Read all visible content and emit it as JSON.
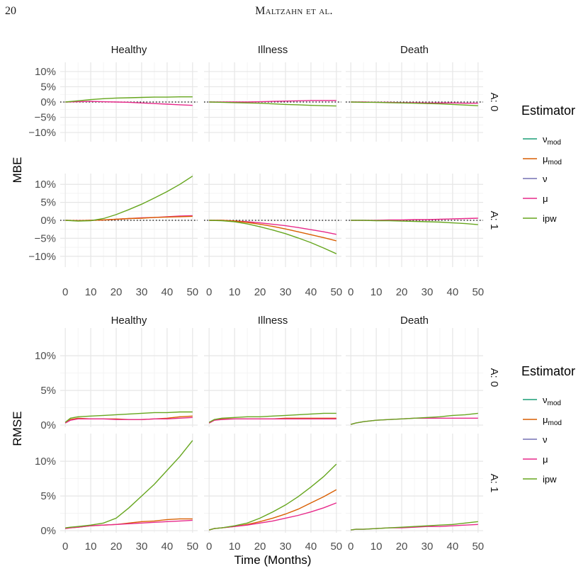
{
  "header": {
    "page_number": "20",
    "running_head": "Maltzahn et al."
  },
  "chart_data": [
    {
      "type": "line",
      "panel": "top",
      "ylabel": "MBE",
      "facet_cols": [
        "Healthy",
        "Illness",
        "Death"
      ],
      "facet_rows": [
        "A: 0",
        "A: 1"
      ],
      "x_ticks": [
        "0",
        "10",
        "20",
        "30",
        "40",
        "50"
      ],
      "y_ticks": [
        "−10%",
        "−5%",
        "0%",
        "5%",
        "10%"
      ],
      "ylim": [
        -0.13,
        0.13
      ],
      "xlim": [
        -2,
        52
      ],
      "reference_line": 0,
      "legend": {
        "title": "Estimator",
        "placement": "right",
        "entries": [
          {
            "base": "ν",
            "sub": "mod",
            "color": "#1b9e77"
          },
          {
            "base": "μ",
            "sub": "mod",
            "color": "#d95f02"
          },
          {
            "base": "ν",
            "sub": "",
            "color": "#7570b3"
          },
          {
            "base": "μ",
            "sub": "",
            "color": "#e7298a"
          },
          {
            "base": "ipw",
            "sub": "",
            "color": "#66a61e"
          }
        ]
      },
      "x": [
        0,
        5,
        10,
        15,
        20,
        25,
        30,
        35,
        40,
        45,
        50
      ],
      "series": [
        {
          "row": 0,
          "col": 0,
          "name": "μ",
          "color": "#e7298a",
          "values": [
            0,
            0.001,
            0.002,
            0.001,
            0,
            -0.001,
            -0.003,
            -0.005,
            -0.007,
            -0.009,
            -0.011
          ]
        },
        {
          "row": 0,
          "col": 0,
          "name": "ipw",
          "color": "#66a61e",
          "values": [
            0,
            0.004,
            0.008,
            0.011,
            0.013,
            0.014,
            0.015,
            0.016,
            0.016,
            0.017,
            0.017
          ]
        },
        {
          "row": 0,
          "col": 1,
          "name": "μ",
          "color": "#e7298a",
          "values": [
            0,
            0,
            0,
            0,
            0.001,
            0.002,
            0.003,
            0.004,
            0.005,
            0.005,
            0.005
          ]
        },
        {
          "row": 0,
          "col": 1,
          "name": "ipw",
          "color": "#66a61e",
          "values": [
            0,
            -0.001,
            -0.002,
            -0.003,
            -0.004,
            -0.006,
            -0.008,
            -0.009,
            -0.011,
            -0.012,
            -0.013
          ]
        },
        {
          "row": 0,
          "col": 2,
          "name": "μ",
          "color": "#e7298a",
          "values": [
            0,
            0,
            -0.001,
            -0.001,
            -0.002,
            -0.002,
            -0.003,
            -0.003,
            -0.003,
            -0.004,
            -0.004
          ]
        },
        {
          "row": 0,
          "col": 2,
          "name": "ipw",
          "color": "#66a61e",
          "values": [
            0,
            -0.001,
            -0.001,
            -0.002,
            -0.003,
            -0.004,
            -0.005,
            -0.006,
            -0.008,
            -0.01,
            -0.012
          ]
        },
        {
          "row": 1,
          "col": 0,
          "name": "μ",
          "color": "#e7298a",
          "values": [
            0,
            -0.001,
            0,
            0.001,
            0.003,
            0.005,
            0.007,
            0.008,
            0.01,
            0.012,
            0.013
          ]
        },
        {
          "row": 1,
          "col": 0,
          "name": "μ_mod",
          "color": "#d95f02",
          "values": [
            0,
            -0.001,
            0,
            0.001,
            0.003,
            0.005,
            0.006,
            0.008,
            0.009,
            0.01,
            0.011
          ]
        },
        {
          "row": 1,
          "col": 0,
          "name": "ipw",
          "color": "#66a61e",
          "values": [
            0,
            -0.002,
            -0.001,
            0.005,
            0.016,
            0.03,
            0.045,
            0.062,
            0.08,
            0.1,
            0.123
          ]
        },
        {
          "row": 1,
          "col": 1,
          "name": "μ",
          "color": "#e7298a",
          "values": [
            0,
            0,
            -0.002,
            -0.004,
            -0.007,
            -0.011,
            -0.015,
            -0.02,
            -0.026,
            -0.032,
            -0.039
          ]
        },
        {
          "row": 1,
          "col": 1,
          "name": "μ_mod",
          "color": "#d95f02",
          "values": [
            0,
            0,
            -0.002,
            -0.006,
            -0.011,
            -0.017,
            -0.024,
            -0.032,
            -0.04,
            -0.048,
            -0.057
          ]
        },
        {
          "row": 1,
          "col": 1,
          "name": "ipw",
          "color": "#66a61e",
          "values": [
            0,
            -0.001,
            -0.004,
            -0.01,
            -0.018,
            -0.027,
            -0.037,
            -0.049,
            -0.062,
            -0.077,
            -0.093
          ]
        },
        {
          "row": 1,
          "col": 2,
          "name": "μ",
          "color": "#e7298a",
          "values": [
            0,
            0,
            0,
            0.001,
            0.001,
            0.002,
            0.002,
            0.003,
            0.004,
            0.005,
            0.006
          ]
        },
        {
          "row": 1,
          "col": 2,
          "name": "ipw",
          "color": "#66a61e",
          "values": [
            0,
            0,
            -0.001,
            -0.001,
            -0.002,
            -0.003,
            -0.004,
            -0.005,
            -0.007,
            -0.009,
            -0.012
          ]
        }
      ]
    },
    {
      "type": "line",
      "panel": "bottom",
      "ylabel": "RMSE",
      "xlabel": "Time (Months)",
      "facet_cols": [
        "Healthy",
        "Illness",
        "Death"
      ],
      "facet_rows": [
        "A: 0",
        "A: 1"
      ],
      "x_ticks": [
        "0",
        "10",
        "20",
        "30",
        "40",
        "50"
      ],
      "y_ticks": [
        "0%",
        "5%",
        "10%"
      ],
      "ylim": [
        -0.003,
        0.14
      ],
      "xlim": [
        -2,
        52
      ],
      "legend": {
        "title": "Estimator",
        "placement": "right",
        "entries": [
          {
            "base": "ν",
            "sub": "mod",
            "color": "#1b9e77"
          },
          {
            "base": "μ",
            "sub": "mod",
            "color": "#d95f02"
          },
          {
            "base": "ν",
            "sub": "",
            "color": "#7570b3"
          },
          {
            "base": "μ",
            "sub": "",
            "color": "#e7298a"
          },
          {
            "base": "ipw",
            "sub": "",
            "color": "#66a61e"
          }
        ]
      },
      "x": [
        0,
        2,
        5,
        10,
        15,
        20,
        25,
        30,
        35,
        40,
        45,
        50
      ],
      "series": [
        {
          "row": 0,
          "col": 0,
          "name": "μ_mod",
          "color": "#d95f02",
          "values": [
            0.003,
            0.008,
            0.01,
            0.009,
            0.009,
            0.009,
            0.008,
            0.008,
            0.009,
            0.01,
            0.012,
            0.013
          ]
        },
        {
          "row": 0,
          "col": 0,
          "name": "μ",
          "color": "#e7298a",
          "values": [
            0.003,
            0.007,
            0.009,
            0.009,
            0.009,
            0.008,
            0.008,
            0.008,
            0.009,
            0.009,
            0.01,
            0.011
          ]
        },
        {
          "row": 0,
          "col": 0,
          "name": "ipw",
          "color": "#66a61e",
          "values": [
            0.004,
            0.01,
            0.012,
            0.013,
            0.014,
            0.015,
            0.016,
            0.017,
            0.018,
            0.018,
            0.019,
            0.019
          ]
        },
        {
          "row": 0,
          "col": 1,
          "name": "μ_mod",
          "color": "#d95f02",
          "values": [
            0.003,
            0.007,
            0.009,
            0.009,
            0.009,
            0.009,
            0.009,
            0.01,
            0.01,
            0.01,
            0.01,
            0.01
          ]
        },
        {
          "row": 0,
          "col": 1,
          "name": "μ",
          "color": "#e7298a",
          "values": [
            0.003,
            0.007,
            0.008,
            0.009,
            0.009,
            0.009,
            0.009,
            0.009,
            0.009,
            0.009,
            0.009,
            0.009
          ]
        },
        {
          "row": 0,
          "col": 1,
          "name": "ipw",
          "color": "#66a61e",
          "values": [
            0.004,
            0.008,
            0.01,
            0.011,
            0.012,
            0.012,
            0.013,
            0.014,
            0.015,
            0.016,
            0.017,
            0.017
          ]
        },
        {
          "row": 0,
          "col": 2,
          "name": "μ",
          "color": "#e7298a",
          "values": [
            0.001,
            0.003,
            0.005,
            0.007,
            0.008,
            0.009,
            0.01,
            0.01,
            0.01,
            0.01,
            0.01,
            0.01
          ]
        },
        {
          "row": 0,
          "col": 2,
          "name": "ipw",
          "color": "#66a61e",
          "values": [
            0.001,
            0.003,
            0.005,
            0.007,
            0.008,
            0.009,
            0.01,
            0.011,
            0.012,
            0.014,
            0.015,
            0.017
          ]
        },
        {
          "row": 1,
          "col": 0,
          "name": "μ_mod",
          "color": "#d95f02",
          "values": [
            0.003,
            0.004,
            0.005,
            0.007,
            0.008,
            0.009,
            0.011,
            0.013,
            0.014,
            0.016,
            0.017,
            0.017
          ]
        },
        {
          "row": 1,
          "col": 0,
          "name": "μ",
          "color": "#e7298a",
          "values": [
            0.003,
            0.004,
            0.005,
            0.007,
            0.008,
            0.009,
            0.01,
            0.011,
            0.012,
            0.013,
            0.014,
            0.015
          ]
        },
        {
          "row": 1,
          "col": 0,
          "name": "ipw",
          "color": "#66a61e",
          "values": [
            0.004,
            0.005,
            0.006,
            0.008,
            0.011,
            0.018,
            0.033,
            0.05,
            0.067,
            0.087,
            0.107,
            0.13
          ]
        },
        {
          "row": 1,
          "col": 1,
          "name": "μ_mod",
          "color": "#d95f02",
          "values": [
            0.001,
            0.003,
            0.004,
            0.006,
            0.009,
            0.013,
            0.018,
            0.024,
            0.031,
            0.04,
            0.049,
            0.059
          ]
        },
        {
          "row": 1,
          "col": 1,
          "name": "μ",
          "color": "#e7298a",
          "values": [
            0.001,
            0.003,
            0.004,
            0.006,
            0.008,
            0.011,
            0.014,
            0.018,
            0.022,
            0.027,
            0.033,
            0.04
          ]
        },
        {
          "row": 1,
          "col": 1,
          "name": "ipw",
          "color": "#66a61e",
          "values": [
            0.001,
            0.003,
            0.004,
            0.007,
            0.011,
            0.018,
            0.027,
            0.037,
            0.049,
            0.063,
            0.078,
            0.096
          ]
        },
        {
          "row": 1,
          "col": 2,
          "name": "μ",
          "color": "#e7298a",
          "values": [
            0.001,
            0.002,
            0.002,
            0.003,
            0.004,
            0.004,
            0.005,
            0.006,
            0.006,
            0.007,
            0.008,
            0.009
          ]
        },
        {
          "row": 1,
          "col": 2,
          "name": "ipw",
          "color": "#66a61e",
          "values": [
            0.001,
            0.002,
            0.002,
            0.003,
            0.004,
            0.005,
            0.006,
            0.007,
            0.008,
            0.009,
            0.011,
            0.013
          ]
        }
      ]
    }
  ]
}
